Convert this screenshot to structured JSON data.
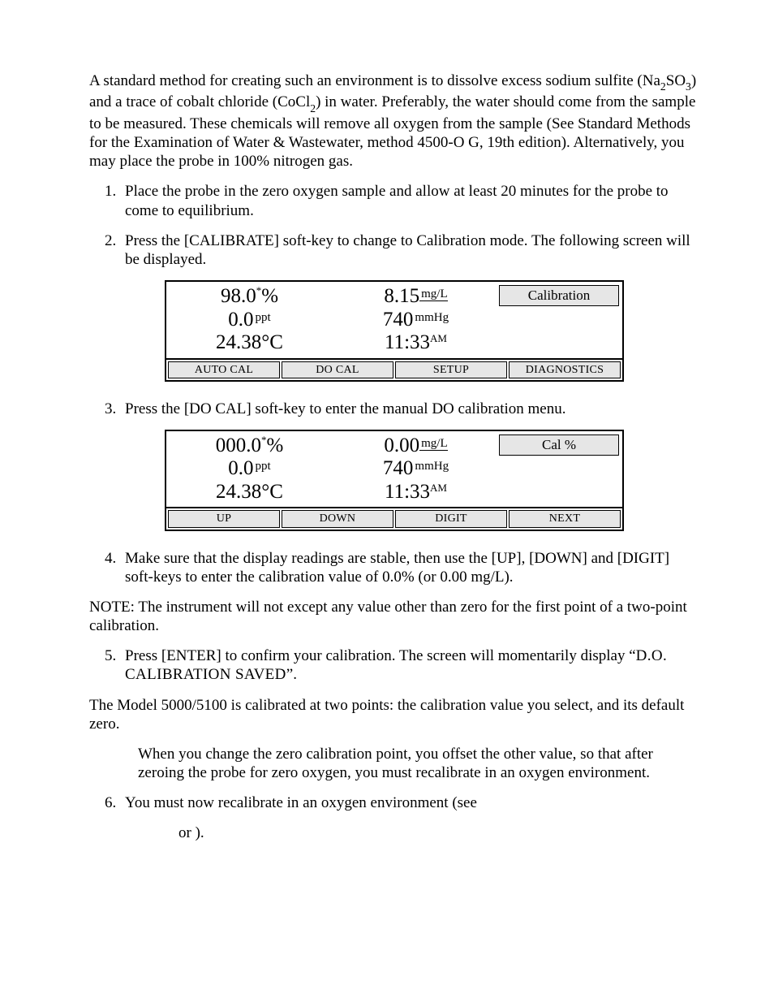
{
  "intro": {
    "p1a": "A standard method for creating such an environment is to dissolve excess sodium sulfite (Na",
    "p1b": "SO",
    "p1c": ") and a trace of cobalt chloride (CoCl",
    "p1d": ") in water. Preferably, the water should come from the sample to be measured. These chemicals will remove all oxygen from the sample (See Standard Methods for the Examination of Water & Wastewater, method 4500-O G, 19th edition). Alternatively, you may place the probe in 100% nitrogen gas.",
    "n2": "2",
    "n3": "3"
  },
  "steps": {
    "s1": "Place the probe in the zero oxygen sample and allow at least 20 minutes for the probe to come to equilibrium.",
    "s2": "Press the [CALIBRATE] soft-key to change to Calibration mode. The following screen will be displayed.",
    "s3": "Press the [DO CAL] soft-key to enter the manual DO calibration menu.",
    "s4": "Make sure that the display readings are stable, then use the [UP], [DOWN] and [DIGIT] soft-keys to enter the calibration value of 0.0% (or 0.00 mg/L).",
    "s5a": "Press [ENTER] to confirm your calibration. The screen will momentarily display “",
    "s5b": "D.O. CALIBRATION SAVED",
    "s5c": "”.",
    "s6": "You must now recalibrate in an oxygen environment (see"
  },
  "note": "NOTE: The instrument will not except any value other than zero for the first point of a two-point calibration.",
  "aftertext": {
    "p1": "The Model 5000/5100 is calibrated at two points:  the calibration value you select, and its default zero.",
    "p2": "When you change the zero calibration point, you offset the other value, so that after zeroing the probe for zero oxygen, you must recalibrate in an oxygen environment."
  },
  "refline": " or              ).",
  "screen1": {
    "pct": "98.0",
    "mgL": "8.15",
    "ppt": "0.0",
    "mmHg": "740",
    "temp": "24.38°C",
    "time": "11:33",
    "ampm": "AM",
    "status": "Calibration",
    "unit_mgL": "mg/L",
    "unit_ppt": "ppt",
    "unit_mmHg": "mmHg",
    "keys": [
      "AUTO CAL",
      "DO CAL",
      "SETUP",
      "DIAGNOSTICS"
    ]
  },
  "screen2": {
    "pct": "000.0",
    "mgL": "0.00",
    "ppt": "0.0",
    "mmHg": "740",
    "temp": "24.38°C",
    "time": "11:33",
    "ampm": "AM",
    "status": "Cal  %",
    "unit_mgL": "mg/L",
    "unit_ppt": "ppt",
    "unit_mmHg": "mmHg",
    "keys": [
      "UP",
      "DOWN",
      "DIGIT",
      "NEXT"
    ]
  },
  "style": {
    "softkey_bg": "#e6e6e6",
    "status_bg": "#e6e6e6",
    "border": "#000000",
    "text": "#000000",
    "bg": "#ffffff",
    "body_fontsize": 19,
    "rd_fontsize": 25,
    "unit_fontsize": 15,
    "softkey_fontsize": 14,
    "lcd_width": 566
  }
}
